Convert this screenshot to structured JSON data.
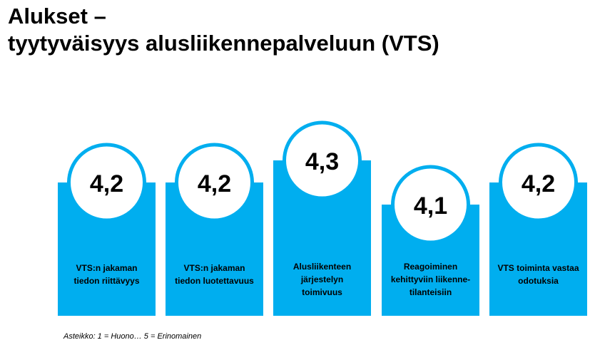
{
  "title_line1": "Alukset –",
  "title_line2": "tyytyväisyys alusliikennepalveluun (VTS)",
  "scale_note": "Asteikko: 1 = Huono… 5 = Erinomainen",
  "colors": {
    "bar": "#00aeef",
    "circle_border": "#00aeef",
    "circle_fill": "#ffffff",
    "text": "#000000"
  },
  "chart_data": {
    "type": "bar",
    "categories": [
      [
        "VTS:n jakaman",
        "tiedon riittävyys"
      ],
      [
        "VTS:n jakaman",
        "tiedon luotettavuus"
      ],
      [
        "Alusliikenteen",
        "järjestelyn",
        "toimivuus"
      ],
      [
        "Reagoiminen",
        "kehittyviin liikenne-",
        "tilanteisiin"
      ],
      [
        "VTS toiminta vastaa",
        "odotuksia"
      ]
    ],
    "values": [
      4.2,
      4.2,
      4.3,
      4.1,
      4.2
    ],
    "value_labels": [
      "4,2",
      "4,2",
      "4,3",
      "4,1",
      "4,2"
    ],
    "scale": [
      1,
      5
    ]
  }
}
